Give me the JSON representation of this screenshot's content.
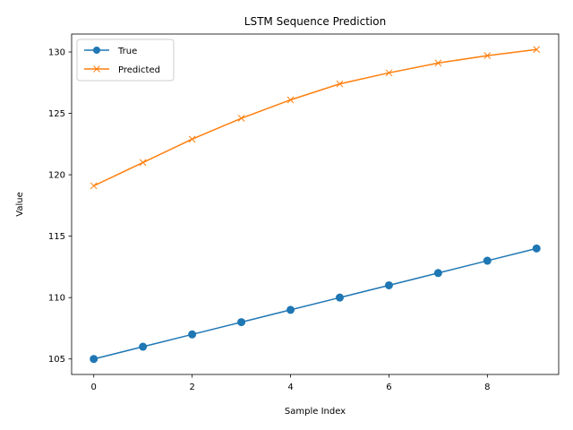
{
  "chart_data": {
    "type": "line",
    "title": "LSTM Sequence Prediction",
    "xlabel": "Sample Index",
    "ylabel": "Value",
    "x": [
      0,
      1,
      2,
      3,
      4,
      5,
      6,
      7,
      8,
      9
    ],
    "xlim": [
      -0.45,
      9.45
    ],
    "ylim": [
      103.74,
      131.46
    ],
    "xticks": [
      0,
      2,
      4,
      6,
      8
    ],
    "yticks": [
      105,
      110,
      115,
      120,
      125,
      130
    ],
    "grid": false,
    "legend_position": "upper left",
    "series": [
      {
        "name": "True",
        "color": "#1f77b4",
        "marker": "circle",
        "values": [
          105,
          106,
          107,
          108,
          109,
          110,
          111,
          112,
          113,
          114
        ]
      },
      {
        "name": "Predicted",
        "color": "#ff7f0e",
        "marker": "x",
        "values": [
          119.1,
          121.0,
          122.9,
          124.6,
          126.1,
          127.4,
          128.3,
          129.1,
          129.7,
          130.2
        ]
      }
    ]
  }
}
